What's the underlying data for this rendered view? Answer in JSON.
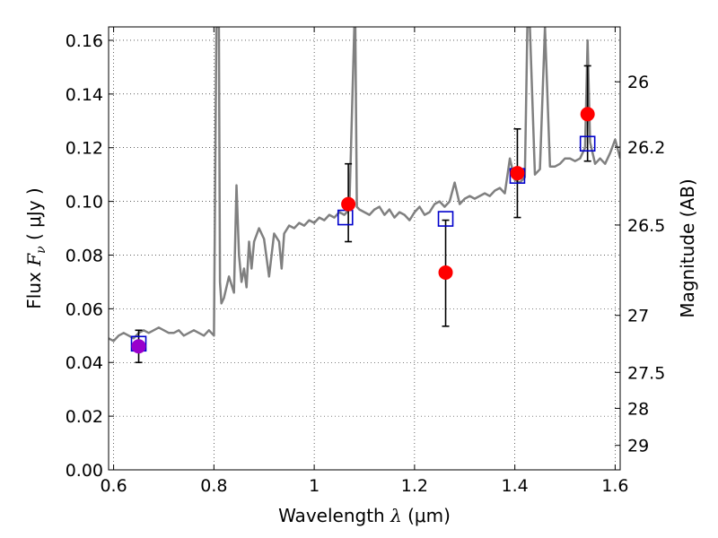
{
  "chart_data": {
    "type": "scatter",
    "xlabel": {
      "prefix": "Wavelength ",
      "symbol": "λ",
      "unit": " (μm)"
    },
    "ylabel": {
      "prefix": "Flux ",
      "symbol": "F",
      "subscript": "ν",
      "unit": " ( μJy )"
    },
    "y2label": "Magnitude (AB)",
    "xlim": [
      0.59,
      1.61
    ],
    "ylim": [
      0.0,
      0.165
    ],
    "grid": true,
    "x_ticks": [
      0.6,
      0.8,
      1.0,
      1.2,
      1.4,
      1.6
    ],
    "x_tick_labels": [
      "0.6",
      "0.8",
      "1",
      "1.2",
      "1.4",
      "1.6"
    ],
    "y_ticks": [
      0.0,
      0.02,
      0.04,
      0.06,
      0.08,
      0.1,
      0.12,
      0.14,
      0.16
    ],
    "y_tick_labels": [
      "0.00",
      "0.02",
      "0.04",
      "0.06",
      "0.08",
      "0.10",
      "0.12",
      "0.14",
      "0.16"
    ],
    "y2_ticks": [
      26,
      26.2,
      26.5,
      27,
      27.5,
      28,
      29
    ],
    "y2_tick_labels": [
      "26",
      "26.2",
      "26.5",
      "27",
      "27.5",
      "28",
      "29"
    ],
    "series": [
      {
        "kind": "line",
        "color": "#808080",
        "x": [
          0.59,
          0.6,
          0.61,
          0.62,
          0.63,
          0.64,
          0.65,
          0.66,
          0.67,
          0.68,
          0.69,
          0.7,
          0.71,
          0.72,
          0.73,
          0.74,
          0.75,
          0.76,
          0.77,
          0.78,
          0.79,
          0.8,
          0.805,
          0.81,
          0.812,
          0.815,
          0.82,
          0.83,
          0.84,
          0.845,
          0.85,
          0.855,
          0.86,
          0.865,
          0.87,
          0.875,
          0.88,
          0.89,
          0.9,
          0.91,
          0.92,
          0.93,
          0.935,
          0.94,
          0.95,
          0.96,
          0.97,
          0.98,
          0.99,
          1.0,
          1.01,
          1.02,
          1.03,
          1.04,
          1.05,
          1.06,
          1.07,
          1.08,
          1.082,
          1.085,
          1.09,
          1.1,
          1.11,
          1.12,
          1.13,
          1.14,
          1.15,
          1.16,
          1.17,
          1.18,
          1.19,
          1.2,
          1.21,
          1.22,
          1.23,
          1.24,
          1.25,
          1.26,
          1.27,
          1.28,
          1.29,
          1.3,
          1.31,
          1.32,
          1.33,
          1.34,
          1.35,
          1.36,
          1.37,
          1.38,
          1.39,
          1.4,
          1.41,
          1.42,
          1.425,
          1.43,
          1.44,
          1.45,
          1.46,
          1.47,
          1.48,
          1.49,
          1.5,
          1.51,
          1.52,
          1.53,
          1.54,
          1.545,
          1.55,
          1.56,
          1.57,
          1.58,
          1.59,
          1.6,
          1.61
        ],
        "y": [
          0.049,
          0.048,
          0.05,
          0.051,
          0.05,
          0.049,
          0.051,
          0.052,
          0.051,
          0.052,
          0.053,
          0.052,
          0.051,
          0.051,
          0.052,
          0.05,
          0.051,
          0.052,
          0.051,
          0.05,
          0.052,
          0.05,
          0.165,
          0.165,
          0.07,
          0.062,
          0.064,
          0.072,
          0.066,
          0.106,
          0.08,
          0.07,
          0.075,
          0.068,
          0.085,
          0.075,
          0.085,
          0.09,
          0.086,
          0.072,
          0.088,
          0.085,
          0.075,
          0.088,
          0.091,
          0.09,
          0.092,
          0.091,
          0.093,
          0.092,
          0.094,
          0.093,
          0.095,
          0.094,
          0.096,
          0.095,
          0.097,
          0.165,
          0.165,
          0.098,
          0.097,
          0.096,
          0.095,
          0.097,
          0.098,
          0.095,
          0.097,
          0.094,
          0.096,
          0.095,
          0.093,
          0.096,
          0.098,
          0.095,
          0.096,
          0.099,
          0.1,
          0.098,
          0.1,
          0.107,
          0.099,
          0.101,
          0.102,
          0.101,
          0.102,
          0.103,
          0.102,
          0.104,
          0.105,
          0.103,
          0.116,
          0.108,
          0.107,
          0.109,
          0.165,
          0.165,
          0.11,
          0.112,
          0.165,
          0.113,
          0.113,
          0.114,
          0.116,
          0.116,
          0.115,
          0.116,
          0.12,
          0.16,
          0.122,
          0.114,
          0.116,
          0.114,
          0.118,
          0.123,
          0.116
        ]
      },
      {
        "kind": "points",
        "marker": "square-open",
        "color": "#0000cc",
        "x": [
          0.65,
          1.062,
          1.262,
          1.405,
          1.545
        ],
        "y": [
          0.047,
          0.094,
          0.0935,
          0.1095,
          0.1215
        ]
      },
      {
        "kind": "points-errorbar",
        "marker": "circle",
        "color": "#ff0000",
        "x": [
          1.068,
          1.262,
          1.405,
          1.545
        ],
        "y": [
          0.099,
          0.0735,
          0.1105,
          0.1325
        ],
        "yerr_low": [
          0.085,
          0.0535,
          0.094,
          0.115
        ],
        "yerr_high": [
          0.114,
          0.093,
          0.127,
          0.1505
        ]
      },
      {
        "kind": "points-errorbar",
        "marker": "circle",
        "color": "#9900cc",
        "x": [
          0.65
        ],
        "y": [
          0.046
        ],
        "yerr_low": [
          0.04
        ],
        "yerr_high": [
          0.052
        ]
      }
    ]
  }
}
